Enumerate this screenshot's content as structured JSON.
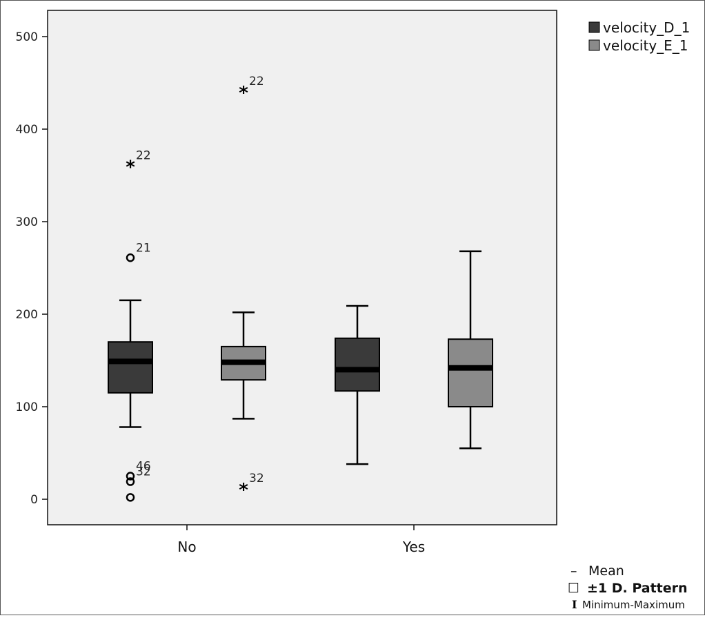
{
  "chart_data": {
    "type": "box",
    "title": "",
    "xlabel": "",
    "ylabel": "",
    "ylim": [
      -30,
      525
    ],
    "yticks": [
      0,
      100,
      200,
      300,
      400,
      500
    ],
    "categories": [
      "No",
      "Yes"
    ],
    "series": [
      {
        "name": "velocity_D_1",
        "color": "#3a3a3a",
        "boxes": [
          {
            "category": "No",
            "min": 78,
            "q1": 115,
            "median": 149,
            "q3": 170,
            "max": 215
          },
          {
            "category": "Yes",
            "min": 38,
            "q1": 117,
            "median": 140,
            "q3": 174,
            "max": 209
          }
        ]
      },
      {
        "name": "velocity_E_1",
        "color": "#8a8a8a",
        "boxes": [
          {
            "category": "No",
            "min": 87,
            "q1": 129,
            "median": 148,
            "q3": 165,
            "max": 202
          },
          {
            "category": "Yes",
            "min": 55,
            "q1": 100,
            "median": 142,
            "q3": 173,
            "max": 268
          }
        ]
      }
    ],
    "outliers": [
      {
        "series": "velocity_D_1",
        "category": "No",
        "value": 361,
        "marker": "star",
        "label": "22"
      },
      {
        "series": "velocity_D_1",
        "category": "No",
        "value": 261,
        "marker": "circle",
        "label": "21"
      },
      {
        "series": "velocity_D_1",
        "category": "No",
        "value": 25,
        "marker": "circle",
        "label": "46"
      },
      {
        "series": "velocity_D_1",
        "category": "No",
        "value": 19,
        "marker": "circle",
        "label": "32"
      },
      {
        "series": "velocity_D_1",
        "category": "No",
        "value": 2,
        "marker": "circle",
        "label": ""
      },
      {
        "series": "velocity_E_1",
        "category": "No",
        "value": 441,
        "marker": "star",
        "label": "22"
      },
      {
        "series": "velocity_E_1",
        "category": "No",
        "value": 12,
        "marker": "star",
        "label": "32"
      }
    ],
    "legend": {
      "placement": "top-right",
      "entries": [
        "velocity_D_1",
        "velocity_E_1"
      ]
    },
    "plot_background": "#f0f0f0",
    "key": {
      "mean_symbol": "–",
      "mean_label": "Mean",
      "sd_symbol": "☐",
      "sd_label": "±1 D. Pattern",
      "range_symbol": "I",
      "range_label": "Minimum-Maximum"
    }
  }
}
